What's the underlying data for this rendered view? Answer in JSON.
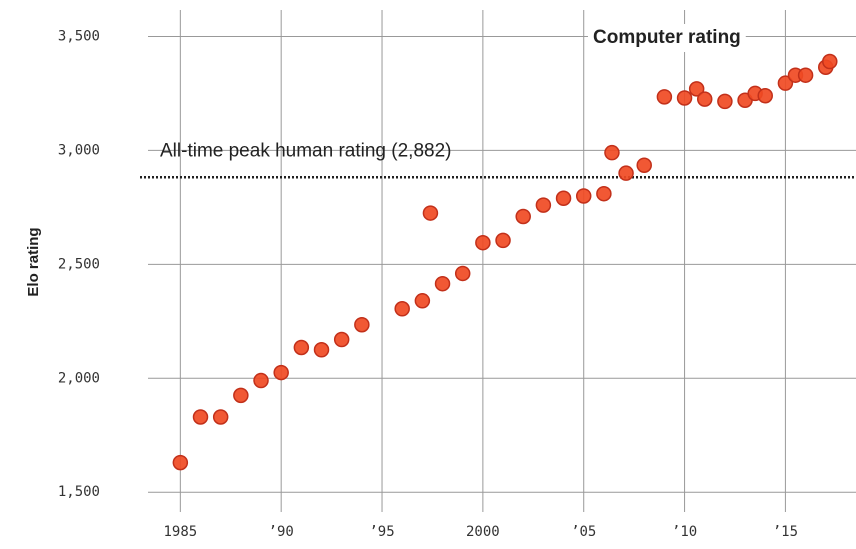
{
  "chart_data": {
    "type": "scatter",
    "y_label": "Elo rating",
    "x": [
      1985,
      1986,
      1987,
      1988,
      1989,
      1990,
      1991,
      1992,
      1993,
      1994,
      1996,
      1997,
      1997.4,
      1998,
      1999,
      2000,
      2001,
      2002,
      2003,
      2004,
      2005,
      2006,
      2006.4,
      2007.1,
      2008,
      2009,
      2010,
      2010.6,
      2011,
      2012,
      2013,
      2013.5,
      2014,
      2015,
      2015.5,
      2016,
      2017,
      2017.2
    ],
    "values": [
      1630,
      1830,
      1830,
      1925,
      1990,
      2025,
      2135,
      2125,
      2170,
      2235,
      2305,
      2340,
      2725,
      2415,
      2460,
      2595,
      2605,
      2710,
      2760,
      2790,
      2800,
      2810,
      2990,
      2900,
      2935,
      3235,
      3230,
      3270,
      3225,
      3215,
      3220,
      3250,
      3240,
      3295,
      3330,
      3330,
      3365,
      3390
    ],
    "color": "#f04a23",
    "xlim": [
      1983,
      2018.5
    ],
    "ylim": [
      1400,
      3660
    ],
    "xticks": [
      1985,
      {
        "value": 1990,
        "label": "’90"
      },
      {
        "value": 1995,
        "label": "’95"
      },
      2000,
      {
        "value": 2005,
        "label": "’05"
      },
      {
        "value": 2010,
        "label": "’10"
      },
      {
        "value": 2015,
        "label": "’15"
      }
    ],
    "yticks": [
      {
        "value": 1500,
        "label": "1,500"
      },
      {
        "value": 2000,
        "label": "2,000"
      },
      {
        "value": 2500,
        "label": "2,500"
      },
      {
        "value": 3000,
        "label": "3,000"
      },
      {
        "value": 3500,
        "label": "3,500"
      }
    ],
    "grid": true,
    "reference_line": {
      "value": 2882,
      "label": "All-time peak human rating (2,882)"
    },
    "annotation": "Computer rating"
  }
}
